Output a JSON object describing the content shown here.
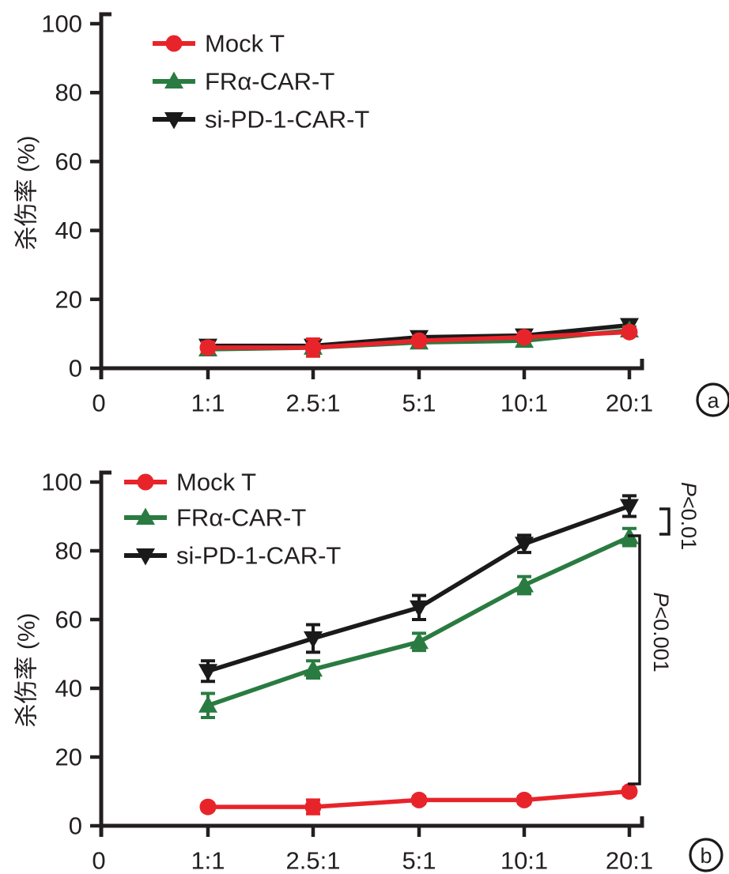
{
  "figure": {
    "background": "#ffffff",
    "text_color": "#231f20",
    "axis_color": "#231f20"
  },
  "chart_data": [
    {
      "type": "line",
      "panel_label": "a",
      "title": "",
      "xlabel": "",
      "ylabel": "杀伤率 (%)",
      "ylim": [
        0,
        100
      ],
      "yticks": [
        0,
        20,
        40,
        60,
        80,
        100
      ],
      "x_origin_label": "0",
      "categories": [
        "1:1",
        "2.5:1",
        "5:1",
        "10:1",
        "20:1"
      ],
      "grid": false,
      "legend_position": "inside-top-left",
      "series": [
        {
          "name": "Mock T",
          "color": "#e8242b",
          "marker": "circle",
          "values": [
            6,
            6,
            8,
            9,
            10.5
          ],
          "errors": [
            1.5,
            2.5,
            1,
            1,
            1
          ]
        },
        {
          "name": "FRα-CAR-T",
          "color": "#2a7b41",
          "marker": "triangle-up",
          "values": [
            5.5,
            6,
            7.5,
            8,
            11
          ],
          "errors": [
            1,
            1,
            1,
            1,
            1
          ]
        },
        {
          "name": "si-PD-1-CAR-T",
          "color": "#1a1a1a",
          "marker": "triangle-down",
          "values": [
            6.5,
            6.5,
            9,
            9.5,
            12.5
          ],
          "errors": [
            1.5,
            1.5,
            1.5,
            1,
            1.5
          ]
        }
      ],
      "annotations": []
    },
    {
      "type": "line",
      "panel_label": "b",
      "title": "",
      "xlabel": "",
      "ylabel": "杀伤率 (%)",
      "ylim": [
        0,
        100
      ],
      "yticks": [
        0,
        20,
        40,
        60,
        80,
        100
      ],
      "x_origin_label": "0",
      "categories": [
        "1:1",
        "2.5:1",
        "5:1",
        "10:1",
        "20:1"
      ],
      "grid": false,
      "legend_position": "inside-top-left",
      "series": [
        {
          "name": "Mock T",
          "color": "#e8242b",
          "marker": "circle",
          "values": [
            5.5,
            5.5,
            7.5,
            7.5,
            10
          ],
          "errors": [
            1,
            2,
            1,
            1,
            1
          ]
        },
        {
          "name": "FRα-CAR-T",
          "color": "#2a7b41",
          "marker": "triangle-up",
          "values": [
            35,
            45.5,
            53.5,
            70,
            84
          ],
          "errors": [
            3.5,
            2.5,
            2.5,
            2.5,
            2.5
          ]
        },
        {
          "name": "si-PD-1-CAR-T",
          "color": "#1a1a1a",
          "marker": "triangle-down",
          "values": [
            45,
            54.5,
            63.5,
            82,
            93
          ],
          "errors": [
            3,
            4,
            3.5,
            2.5,
            3
          ]
        }
      ],
      "annotations": [
        {
          "label": "P<0.01",
          "compares": [
            "si-PD-1-CAR-T",
            "FRα-CAR-T"
          ]
        },
        {
          "label": "P<0.001",
          "compares": [
            "FRα-CAR-T",
            "Mock T"
          ]
        }
      ]
    }
  ]
}
